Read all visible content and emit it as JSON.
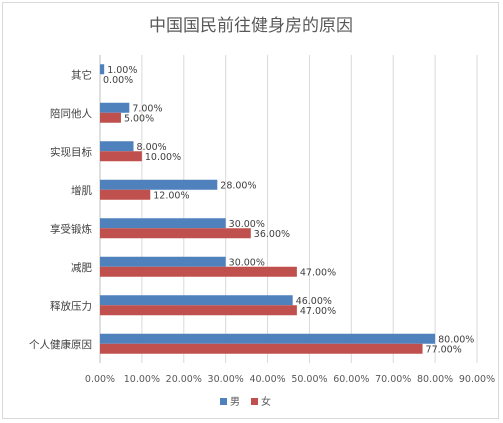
{
  "chart_data": {
    "type": "bar",
    "orientation": "horizontal",
    "title": "中国国民前往健身房的原因",
    "categories": [
      "其它",
      "陪同他人",
      "实现目标",
      "增肌",
      "享受锻炼",
      "减肥",
      "释放压力",
      "个人健康原因"
    ],
    "series": [
      {
        "name": "男",
        "color": "#4f81bd",
        "values": [
          1.0,
          7.0,
          8.0,
          28.0,
          30.0,
          30.0,
          46.0,
          80.0
        ],
        "labels": [
          "1.00%",
          "7.00%",
          "8.00%",
          "28.00%",
          "30.00%",
          "30.00%",
          "46.00%",
          "80.00%"
        ]
      },
      {
        "name": "女",
        "color": "#c0504d",
        "values": [
          0.0,
          5.0,
          10.0,
          12.0,
          36.0,
          47.0,
          47.0,
          77.0
        ],
        "labels": [
          "0.00%",
          "5.00%",
          "10.00%",
          "12.00%",
          "36.00%",
          "47.00%",
          "47.00%",
          "77.00%"
        ]
      }
    ],
    "xlim": [
      0,
      90
    ],
    "x_ticks": [
      0,
      10,
      20,
      30,
      40,
      50,
      60,
      70,
      80,
      90
    ],
    "x_tick_labels": [
      "0.00%",
      "10.00%",
      "20.00%",
      "30.00%",
      "40.00%",
      "50.00%",
      "60.00%",
      "70.00%",
      "80.00%",
      "90.00%"
    ],
    "xlabel": "",
    "ylabel": "",
    "grid": true,
    "legend_position": "bottom"
  },
  "colors": {
    "gridline": "#d9d9d9",
    "axis": "#bfbfbf"
  }
}
